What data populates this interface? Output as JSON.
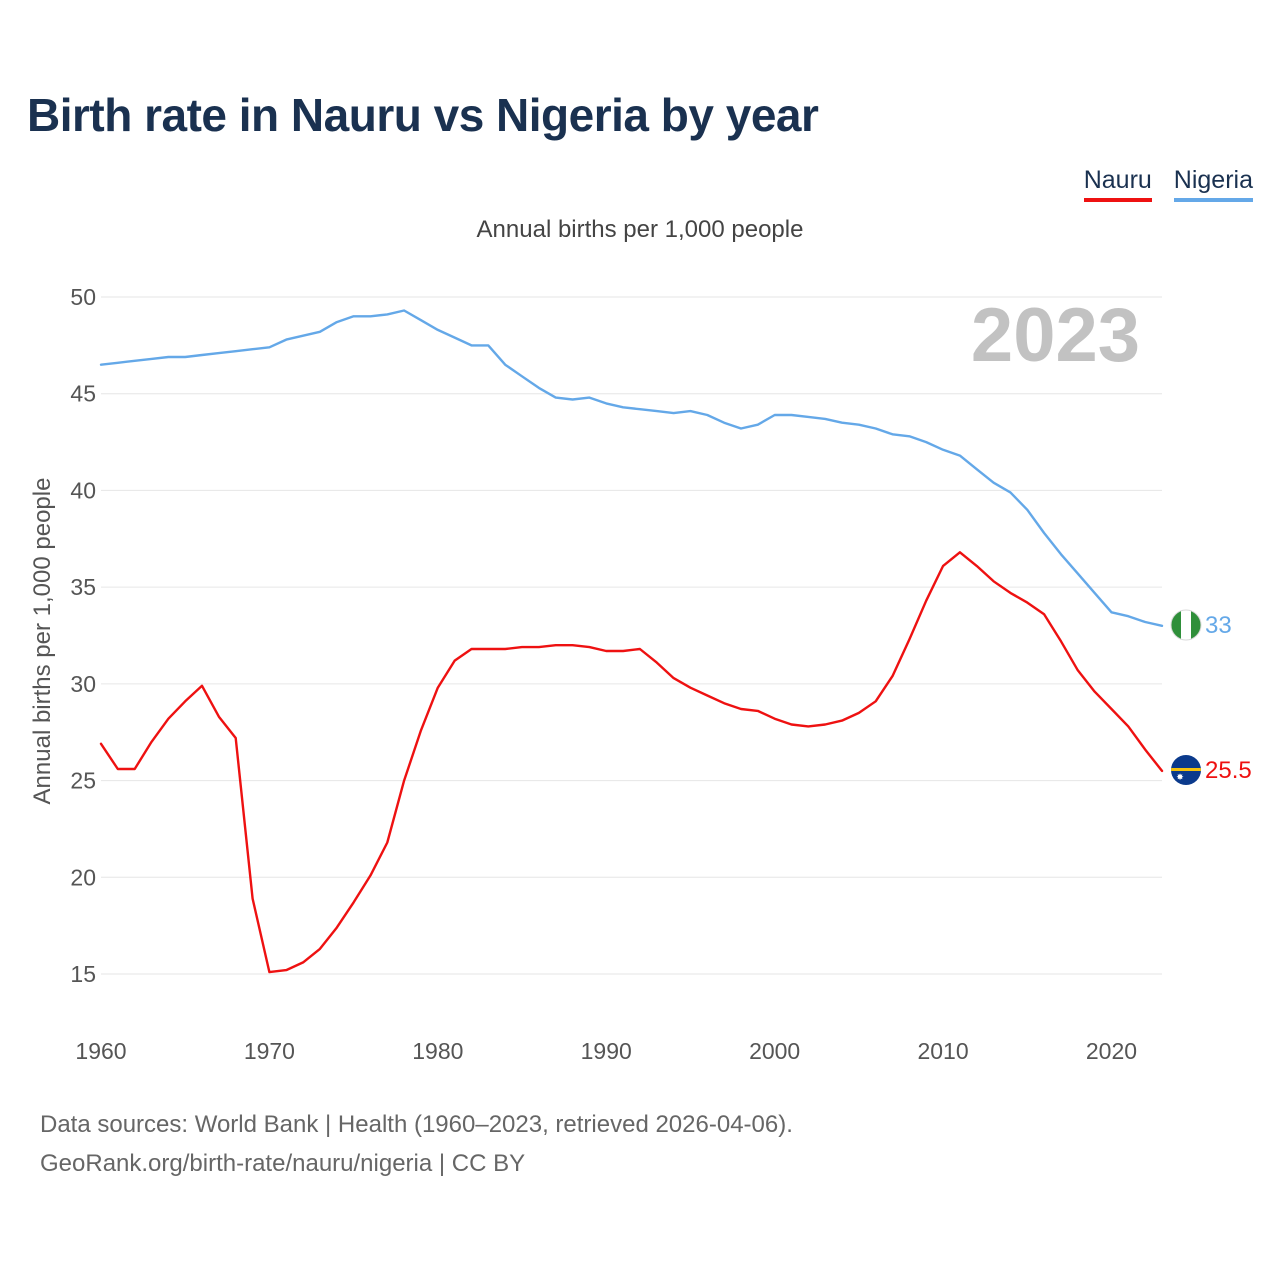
{
  "title": "Birth rate in Nauru vs Nigeria by year",
  "subtitle": "Annual births per 1,000 people",
  "year_label": "2023",
  "legend": [
    {
      "name": "Nauru",
      "color": "#ee1111"
    },
    {
      "name": "Nigeria",
      "color": "#64a8e8"
    }
  ],
  "footer": {
    "line1": "Data sources: World Bank | Health (1960–2023, retrieved 2026-04-06).",
    "line2": "GeoRank.org/birth-rate/nauru/nigeria | CC BY"
  },
  "chart_data": {
    "type": "line",
    "title": "Birth rate in Nauru vs Nigeria by year",
    "ylabel": "Annual births per 1,000 people",
    "xlabel": "",
    "xlim": [
      1960,
      2023
    ],
    "ylim": [
      15,
      50
    ],
    "xticks": [
      "1960",
      "1970",
      "1980",
      "1990",
      "2000",
      "2010",
      "2020"
    ],
    "yticks": [
      "15",
      "20",
      "25",
      "30",
      "35",
      "40",
      "45",
      "50"
    ],
    "x_start": 1960,
    "series": [
      {
        "name": "Nauru",
        "color": "#ee1111",
        "end_label": "25.5",
        "values": [
          26.9,
          25.6,
          25.6,
          27.0,
          28.2,
          29.1,
          29.9,
          28.3,
          27.2,
          18.9,
          15.1,
          15.2,
          15.6,
          16.3,
          17.4,
          18.7,
          20.1,
          21.8,
          25.0,
          27.6,
          29.8,
          31.2,
          31.8,
          31.8,
          31.8,
          31.9,
          31.9,
          32.0,
          32.0,
          31.9,
          31.7,
          31.7,
          31.8,
          31.1,
          30.3,
          29.8,
          29.4,
          29.0,
          28.7,
          28.6,
          28.2,
          27.9,
          27.8,
          27.9,
          28.1,
          28.5,
          29.1,
          30.4,
          32.3,
          34.3,
          36.1,
          36.8,
          36.1,
          35.3,
          34.7,
          34.2,
          33.6,
          32.2,
          30.7,
          29.6,
          28.7,
          27.8,
          26.6,
          25.5
        ]
      },
      {
        "name": "Nigeria",
        "color": "#64a8e8",
        "end_label": "33",
        "values": [
          46.5,
          46.6,
          46.7,
          46.8,
          46.9,
          46.9,
          47.0,
          47.1,
          47.2,
          47.3,
          47.4,
          47.8,
          48.0,
          48.2,
          48.7,
          49.0,
          49.0,
          49.1,
          49.3,
          48.8,
          48.3,
          47.9,
          47.5,
          47.5,
          46.5,
          45.9,
          45.3,
          44.8,
          44.7,
          44.8,
          44.5,
          44.3,
          44.2,
          44.1,
          44.0,
          44.1,
          43.9,
          43.5,
          43.2,
          43.4,
          43.9,
          43.9,
          43.8,
          43.7,
          43.5,
          43.4,
          43.2,
          42.9,
          42.8,
          42.5,
          42.1,
          41.8,
          41.1,
          40.4,
          39.9,
          39.0,
          37.8,
          36.7,
          35.7,
          34.7,
          33.7,
          33.5,
          33.2,
          33.0
        ]
      }
    ]
  }
}
